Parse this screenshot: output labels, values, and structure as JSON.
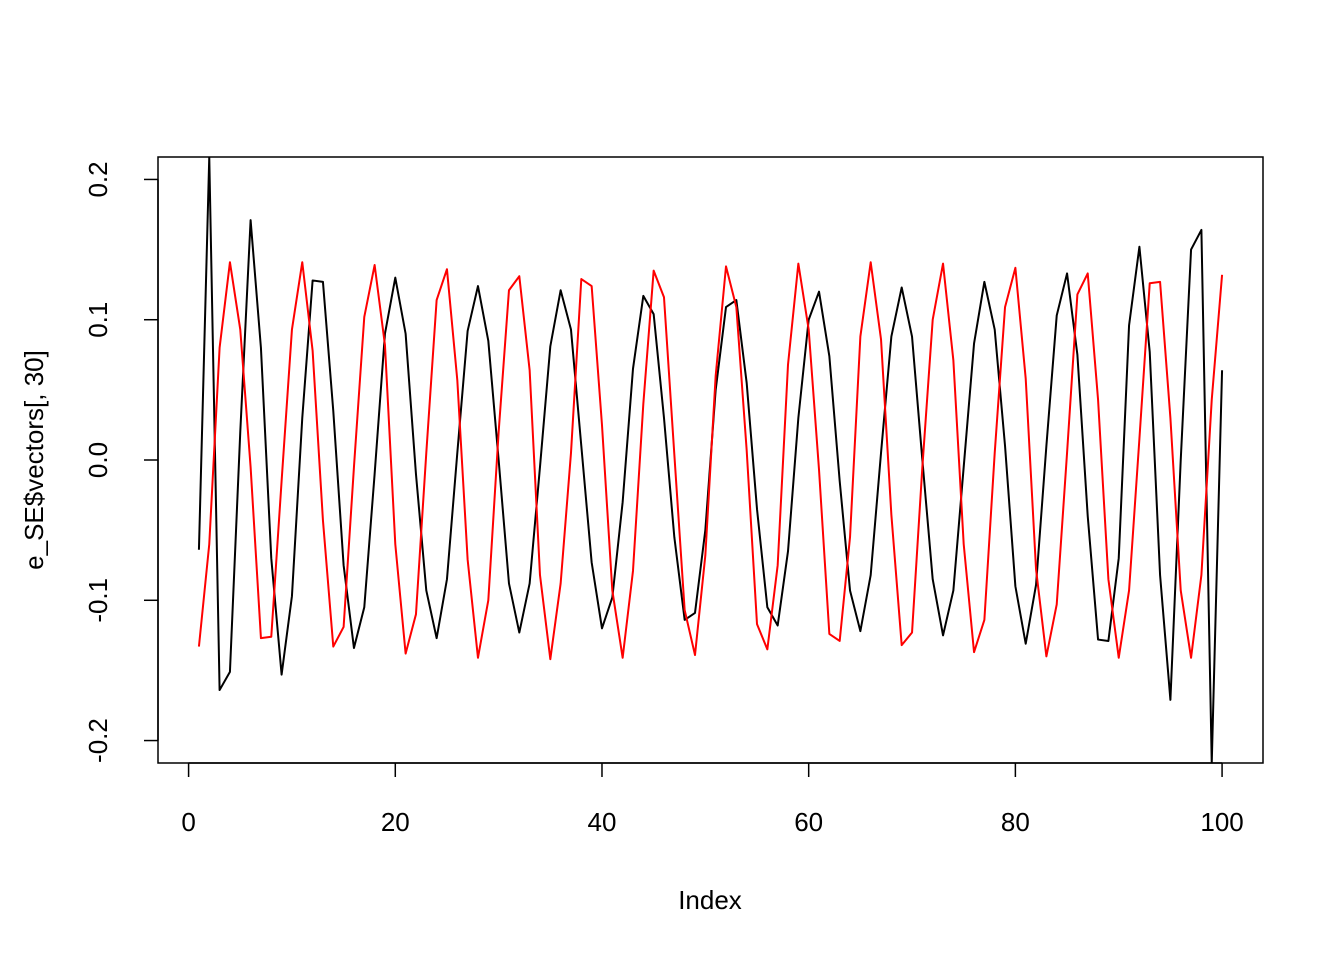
{
  "chart_data": {
    "type": "line",
    "xlabel": "Index",
    "ylabel": "e_SE$vectors[, 30]",
    "x": [
      1,
      2,
      3,
      4,
      5,
      6,
      7,
      8,
      9,
      10,
      11,
      12,
      13,
      14,
      15,
      16,
      17,
      18,
      19,
      20,
      21,
      22,
      23,
      24,
      25,
      26,
      27,
      28,
      29,
      30,
      31,
      32,
      33,
      34,
      35,
      36,
      37,
      38,
      39,
      40,
      41,
      42,
      43,
      44,
      45,
      46,
      47,
      48,
      49,
      50,
      51,
      52,
      53,
      54,
      55,
      56,
      57,
      58,
      59,
      60,
      61,
      62,
      63,
      64,
      65,
      66,
      67,
      68,
      69,
      70,
      71,
      72,
      73,
      74,
      75,
      76,
      77,
      78,
      79,
      80,
      81,
      82,
      83,
      84,
      85,
      86,
      87,
      88,
      89,
      90,
      91,
      92,
      93,
      94,
      95,
      96,
      97,
      98,
      99,
      100
    ],
    "series": [
      {
        "color": "#000000",
        "values": [
          -0.064,
          0.216,
          -0.164,
          -0.151,
          0.02,
          0.171,
          0.08,
          -0.07,
          -0.153,
          -0.097,
          0.03,
          0.128,
          0.127,
          0.035,
          -0.075,
          -0.134,
          -0.105,
          -0.01,
          0.09,
          0.13,
          0.09,
          -0.01,
          -0.093,
          -0.127,
          -0.085,
          0.005,
          0.092,
          0.124,
          0.085,
          0.0,
          -0.088,
          -0.123,
          -0.088,
          -0.005,
          0.081,
          0.121,
          0.093,
          0.01,
          -0.073,
          -0.12,
          -0.098,
          -0.03,
          0.065,
          0.117,
          0.104,
          0.03,
          -0.055,
          -0.114,
          -0.109,
          -0.05,
          0.05,
          0.109,
          0.114,
          0.055,
          -0.035,
          -0.105,
          -0.118,
          -0.065,
          0.03,
          0.1,
          0.12,
          0.074,
          -0.015,
          -0.093,
          -0.122,
          -0.082,
          0.005,
          0.088,
          0.123,
          0.088,
          0.0,
          -0.085,
          -0.125,
          -0.093,
          -0.005,
          0.083,
          0.127,
          0.093,
          0.01,
          -0.09,
          -0.131,
          -0.089,
          0.01,
          0.103,
          0.133,
          0.075,
          -0.04,
          -0.128,
          -0.129,
          -0.07,
          0.096,
          0.152,
          0.077,
          -0.082,
          -0.171,
          0.0,
          0.15,
          0.164,
          -0.216,
          0.064
        ]
      },
      {
        "color": "#ff0000",
        "values": [
          -0.133,
          -0.06,
          0.08,
          0.141,
          0.093,
          -0.005,
          -0.127,
          -0.126,
          -0.015,
          0.093,
          0.141,
          0.078,
          -0.043,
          -0.133,
          -0.119,
          -0.005,
          0.102,
          0.139,
          0.082,
          -0.06,
          -0.138,
          -0.11,
          0.005,
          0.114,
          0.136,
          0.057,
          -0.071,
          -0.141,
          -0.1,
          0.02,
          0.121,
          0.131,
          0.064,
          -0.082,
          -0.142,
          -0.088,
          0.005,
          0.129,
          0.124,
          0.025,
          -0.093,
          -0.141,
          -0.079,
          0.04,
          0.135,
          0.116,
          0.004,
          -0.107,
          -0.139,
          -0.068,
          0.06,
          0.138,
          0.109,
          0.007,
          -0.117,
          -0.135,
          -0.075,
          0.068,
          0.14,
          0.093,
          -0.007,
          -0.124,
          -0.129,
          -0.055,
          0.088,
          0.141,
          0.086,
          -0.039,
          -0.132,
          -0.123,
          -0.005,
          0.1,
          0.14,
          0.071,
          -0.06,
          -0.137,
          -0.114,
          0.005,
          0.109,
          0.137,
          0.058,
          -0.078,
          -0.14,
          -0.103,
          0.005,
          0.118,
          0.133,
          0.043,
          -0.085,
          -0.141,
          -0.093,
          0.015,
          0.126,
          0.127,
          0.03,
          -0.093,
          -0.141,
          -0.082,
          0.043,
          0.132
        ]
      }
    ],
    "xlim": [
      -2.96,
      103.96
    ],
    "ylim": [
      -0.216,
      0.216
    ],
    "xticks": [
      0,
      20,
      40,
      60,
      80,
      100
    ],
    "yticks": [
      -0.2,
      -0.1,
      {
        "value": 0,
        "label": "0.0"
      },
      0.1,
      0.2
    ]
  }
}
